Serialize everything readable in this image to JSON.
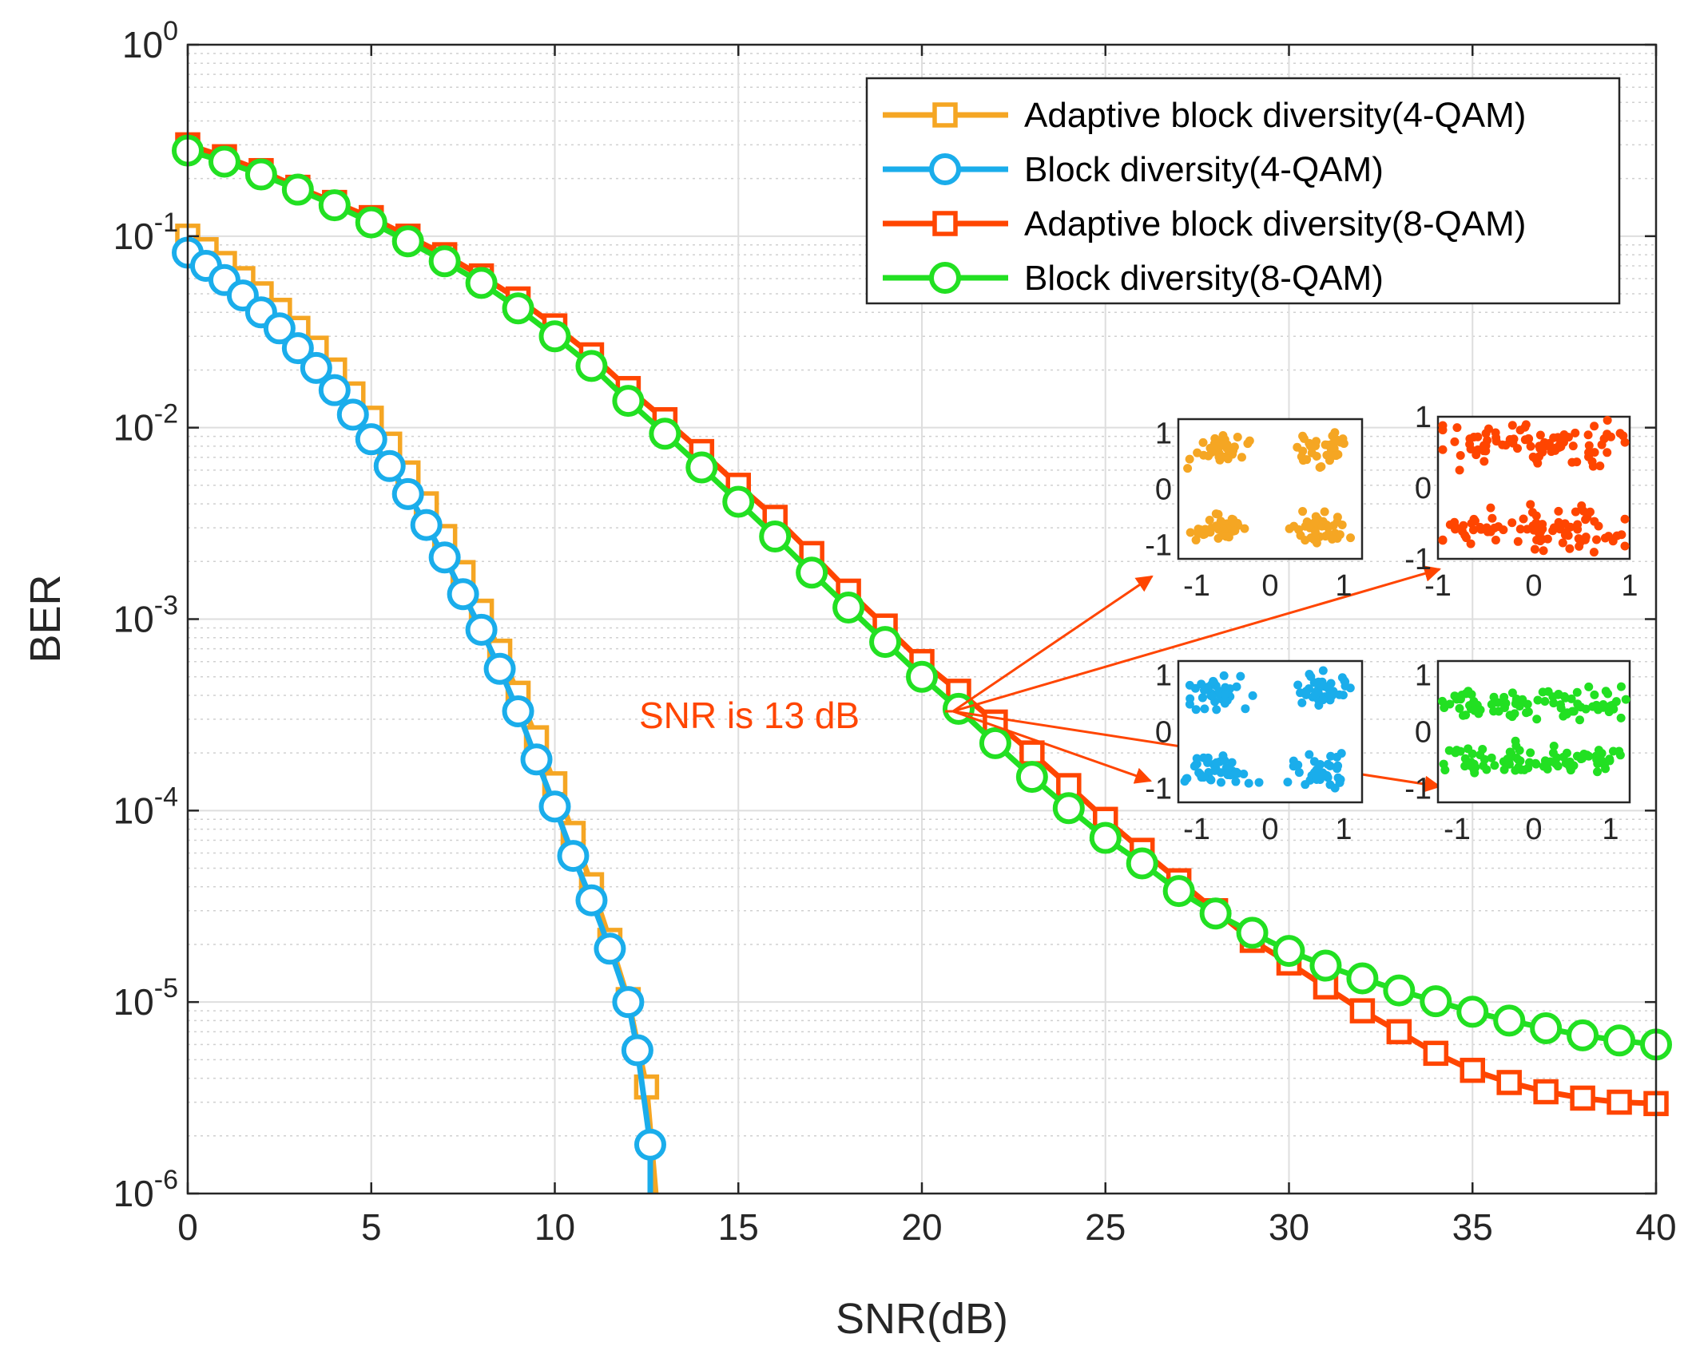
{
  "chart_data": {
    "type": "line",
    "yscale": "log",
    "xlabel": "SNR(dB)",
    "ylabel": "BER",
    "xlim": [
      0,
      40
    ],
    "ylim": [
      1e-06,
      1
    ],
    "grid": true,
    "minor_grid": true,
    "legend_position": "top-right",
    "x_ticks": [
      0,
      5,
      10,
      15,
      20,
      25,
      30,
      35,
      40
    ],
    "y_ticks": [
      {
        "value": 1,
        "base": "10",
        "exp": "0"
      },
      {
        "value": 0.1,
        "base": "10",
        "exp": "-1"
      },
      {
        "value": 0.01,
        "base": "10",
        "exp": "-2"
      },
      {
        "value": 0.001,
        "base": "10",
        "exp": "-3"
      },
      {
        "value": 0.0001,
        "base": "10",
        "exp": "-4"
      },
      {
        "value": 1e-05,
        "base": "10",
        "exp": "-5"
      },
      {
        "value": 1e-06,
        "base": "10",
        "exp": "-6"
      }
    ],
    "series": [
      {
        "name": "Adaptive block diversity(4-QAM)",
        "color": "#F5A623",
        "marker": "square",
        "points": [
          [
            0,
            0.1
          ],
          [
            0.5,
            0.085
          ],
          [
            1,
            0.072
          ],
          [
            1.5,
            0.06
          ],
          [
            2,
            0.05
          ],
          [
            2.5,
            0.041
          ],
          [
            3,
            0.033
          ],
          [
            3.5,
            0.026
          ],
          [
            4,
            0.02
          ],
          [
            4.5,
            0.015
          ],
          [
            5,
            0.0112
          ],
          [
            5.5,
            0.0082
          ],
          [
            6,
            0.0058
          ],
          [
            6.5,
            0.004
          ],
          [
            7,
            0.0027
          ],
          [
            7.5,
            0.00175
          ],
          [
            8,
            0.0011
          ],
          [
            8.5,
            0.00068
          ],
          [
            9,
            0.00041
          ],
          [
            9.5,
            0.00024
          ],
          [
            10,
            0.000138
          ],
          [
            10.5,
            7.6e-05
          ],
          [
            11,
            4.1e-05
          ],
          [
            11.5,
            2.1e-05
          ],
          [
            12,
            1.03e-05
          ],
          [
            12.5,
            3.6e-06
          ],
          [
            12.75,
            1e-06
          ]
        ]
      },
      {
        "name": "Block diversity(4-QAM)",
        "color": "#1AADEB",
        "marker": "circle",
        "points": [
          [
            0,
            0.082
          ],
          [
            0.5,
            0.07
          ],
          [
            1,
            0.059
          ],
          [
            1.5,
            0.049
          ],
          [
            2,
            0.04
          ],
          [
            2.5,
            0.033
          ],
          [
            3,
            0.026
          ],
          [
            3.5,
            0.0205
          ],
          [
            4,
            0.0157
          ],
          [
            4.5,
            0.0117
          ],
          [
            5,
            0.0087
          ],
          [
            5.5,
            0.0063
          ],
          [
            6,
            0.0045
          ],
          [
            6.5,
            0.0031
          ],
          [
            7,
            0.0021
          ],
          [
            7.5,
            0.00135
          ],
          [
            8,
            0.00088
          ],
          [
            8.5,
            0.00055
          ],
          [
            9,
            0.00033
          ],
          [
            9.5,
            0.000185
          ],
          [
            10,
            0.000105
          ],
          [
            10.5,
            5.8e-05
          ],
          [
            11,
            3.4e-05
          ],
          [
            11.5,
            1.9e-05
          ],
          [
            12,
            1e-05
          ],
          [
            12.25,
            5.6e-06
          ],
          [
            12.6,
            1.8e-06
          ],
          [
            12.6,
            1e-06
          ]
        ]
      },
      {
        "name": "Adaptive block diversity(8-QAM)",
        "color": "#FF4500",
        "marker": "square",
        "points": [
          [
            0,
            0.3
          ],
          [
            1,
            0.26
          ],
          [
            2,
            0.22
          ],
          [
            3,
            0.18
          ],
          [
            4,
            0.15
          ],
          [
            5,
            0.125
          ],
          [
            6,
            0.1
          ],
          [
            7,
            0.08
          ],
          [
            8,
            0.062
          ],
          [
            9,
            0.047
          ],
          [
            10,
            0.034
          ],
          [
            11,
            0.024
          ],
          [
            12,
            0.016
          ],
          [
            13,
            0.011
          ],
          [
            14,
            0.0075
          ],
          [
            15,
            0.005
          ],
          [
            16,
            0.0034
          ],
          [
            17,
            0.0022
          ],
          [
            18,
            0.0014
          ],
          [
            19,
            0.00092
          ],
          [
            20,
            0.0006
          ],
          [
            21,
            0.00042
          ],
          [
            22,
            0.00029
          ],
          [
            23,
            0.0002
          ],
          [
            24,
            0.000135
          ],
          [
            25,
            9e-05
          ],
          [
            26,
            6.2e-05
          ],
          [
            27,
            4.3e-05
          ],
          [
            28,
            3e-05
          ],
          [
            29,
            2.1e-05
          ],
          [
            30,
            1.6e-05
          ],
          [
            31,
            1.2e-05
          ],
          [
            32,
            9e-06
          ],
          [
            33,
            7e-06
          ],
          [
            34,
            5.4e-06
          ],
          [
            35,
            4.4e-06
          ],
          [
            36,
            3.8e-06
          ],
          [
            37,
            3.4e-06
          ],
          [
            38,
            3.15e-06
          ],
          [
            39,
            3e-06
          ],
          [
            40,
            2.95e-06
          ]
        ]
      },
      {
        "name": "Block diversity(8-QAM)",
        "color": "#22E022",
        "marker": "circle",
        "points": [
          [
            0,
            0.28
          ],
          [
            1,
            0.245
          ],
          [
            2,
            0.21
          ],
          [
            3,
            0.175
          ],
          [
            4,
            0.145
          ],
          [
            5,
            0.118
          ],
          [
            6,
            0.094
          ],
          [
            7,
            0.074
          ],
          [
            8,
            0.057
          ],
          [
            9,
            0.042
          ],
          [
            10,
            0.03
          ],
          [
            11,
            0.021
          ],
          [
            12,
            0.0138
          ],
          [
            13,
            0.0093
          ],
          [
            14,
            0.0062
          ],
          [
            15,
            0.0041
          ],
          [
            16,
            0.0027
          ],
          [
            17,
            0.00175
          ],
          [
            18,
            0.00115
          ],
          [
            19,
            0.00076
          ],
          [
            20,
            0.0005
          ],
          [
            21,
            0.00034
          ],
          [
            22,
            0.000225
          ],
          [
            23,
            0.00015
          ],
          [
            24,
            0.000103
          ],
          [
            25,
            7.2e-05
          ],
          [
            26,
            5.3e-05
          ],
          [
            27,
            3.8e-05
          ],
          [
            28,
            2.9e-05
          ],
          [
            29,
            2.3e-05
          ],
          [
            30,
            1.85e-05
          ],
          [
            31,
            1.55e-05
          ],
          [
            32,
            1.33e-05
          ],
          [
            33,
            1.15e-05
          ],
          [
            34,
            1.01e-05
          ],
          [
            35,
            8.9e-06
          ],
          [
            36,
            8e-06
          ],
          [
            37,
            7.3e-06
          ],
          [
            38,
            6.7e-06
          ],
          [
            39,
            6.3e-06
          ],
          [
            40,
            6e-06
          ]
        ]
      }
    ],
    "annotation": {
      "text": "SNR is 13 dB",
      "color": "#FF4500",
      "anchor": [
        21,
        0.00033
      ]
    },
    "insets": [
      {
        "type": "scatter",
        "name": "constellation-4qam-adaptive",
        "color": "#F5A623",
        "xlim": [
          -1.25,
          1.25
        ],
        "ylim": [
          -1.25,
          1.25
        ],
        "x_ticks": [
          "-1",
          "0",
          "1"
        ],
        "y_ticks": [
          "1",
          "0",
          "-1"
        ],
        "centers": [
          [
            -0.7,
            0.7
          ],
          [
            0.7,
            0.7
          ],
          [
            -0.7,
            -0.7
          ],
          [
            0.7,
            -0.7
          ]
        ],
        "spread": 0.17
      },
      {
        "type": "scatter",
        "name": "constellation-8qam-adaptive",
        "color": "#FF4500",
        "xlim": [
          -1.0,
          1.0
        ],
        "ylim": [
          -1.0,
          1.0
        ],
        "x_ticks": [
          "-1",
          "0",
          "1"
        ],
        "y_ticks": [
          "1",
          "0",
          "-1"
        ],
        "centers": [
          [
            -0.65,
            0.6
          ],
          [
            -0.2,
            0.6
          ],
          [
            0.2,
            0.6
          ],
          [
            0.65,
            0.6
          ],
          [
            -0.65,
            -0.6
          ],
          [
            -0.2,
            -0.6
          ],
          [
            0.2,
            -0.6
          ],
          [
            0.65,
            -0.6
          ]
        ],
        "spread": 0.2
      },
      {
        "type": "scatter",
        "name": "constellation-4qam-block",
        "color": "#1AADEB",
        "xlim": [
          -1.25,
          1.25
        ],
        "ylim": [
          -1.25,
          1.25
        ],
        "x_ticks": [
          "-1",
          "0",
          "1"
        ],
        "y_ticks": [
          "1",
          "0",
          "-1"
        ],
        "centers": [
          [
            -0.7,
            0.7
          ],
          [
            0.7,
            0.7
          ],
          [
            -0.7,
            -0.7
          ],
          [
            0.7,
            -0.7
          ]
        ],
        "spread": 0.2
      },
      {
        "type": "scatter",
        "name": "constellation-8qam-block",
        "color": "#22E022",
        "xlim": [
          -1.25,
          1.25
        ],
        "ylim": [
          -1.25,
          1.25
        ],
        "x_ticks": [
          "-1",
          "0",
          "1"
        ],
        "y_ticks": [
          "1",
          "0",
          "-1"
        ],
        "centers": [
          [
            -0.85,
            0.5
          ],
          [
            -0.3,
            0.5
          ],
          [
            0.3,
            0.5
          ],
          [
            0.85,
            0.5
          ],
          [
            -0.85,
            -0.5
          ],
          [
            -0.3,
            -0.5
          ],
          [
            0.3,
            -0.5
          ],
          [
            0.85,
            -0.5
          ]
        ],
        "spread": 0.17
      }
    ]
  }
}
